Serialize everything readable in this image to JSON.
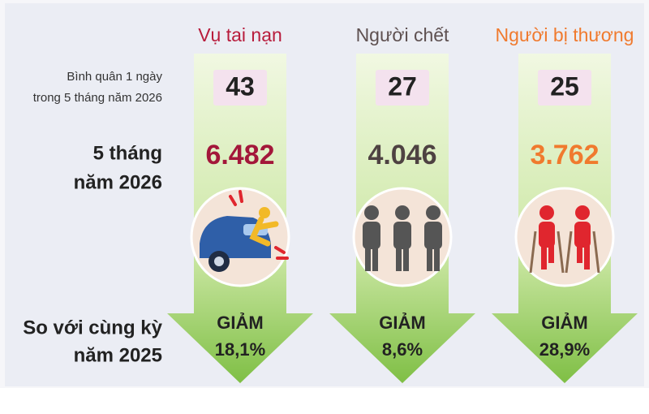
{
  "row_labels": {
    "daily": [
      "Bình quân 1 ngày",
      "trong 5 tháng năm 2026"
    ],
    "total": [
      "5 tháng",
      "năm 2026"
    ],
    "change": [
      "So với cùng kỳ",
      "năm 2025"
    ]
  },
  "columns": [
    {
      "title": "Vụ tai nạn",
      "daily": "43",
      "total": "6.482",
      "change_label": "GIẢM",
      "change": "18,1%"
    },
    {
      "title": "Người chết",
      "daily": "27",
      "total": "4.046",
      "change_label": "GIẢM",
      "change": "8,6%"
    },
    {
      "title": "Người bị thương",
      "daily": "25",
      "total": "3.762",
      "change_label": "GIẢM",
      "change": "28,9%"
    }
  ]
}
